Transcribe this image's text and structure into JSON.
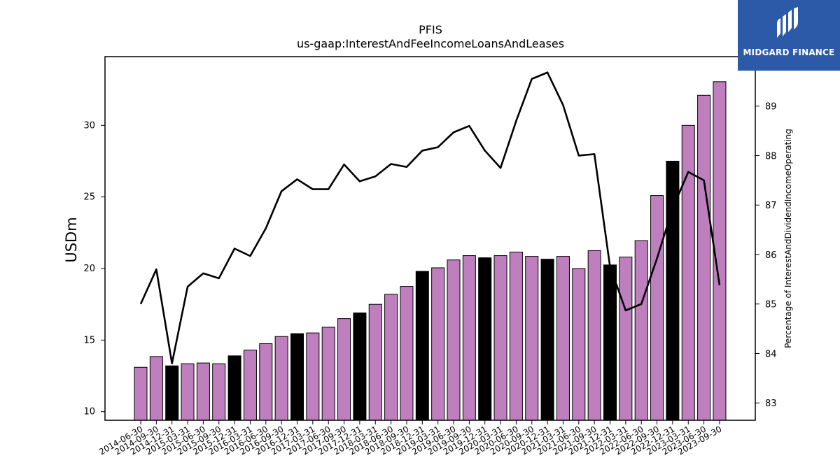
{
  "chart_data": {
    "type": "bar",
    "title": "PFIS",
    "subtitle": "us-gaap:InterestAndFeeIncomeLoansAndLeases",
    "ylabel": "USDm",
    "ylabel_right": "Percentage of InterestAndDividendIncomeOperating",
    "ylim": [
      9.4,
      34.8
    ],
    "ylim_right": [
      82.65,
      90.0
    ],
    "yticks": [
      10,
      15,
      20,
      25,
      30
    ],
    "yticks_right": [
      83,
      84,
      85,
      86,
      87,
      88,
      89
    ],
    "categories": [
      "2014-06-30",
      "2014-09-30",
      "2014-12-31",
      "2015-03-31",
      "2015-06-30",
      "2015-09-30",
      "2015-12-31",
      "2016-03-31",
      "2016-06-30",
      "2016-09-30",
      "2016-12-31",
      "2017-03-31",
      "2017-06-30",
      "2017-09-30",
      "2017-12-31",
      "2018-03-31",
      "2018-06-30",
      "2018-09-30",
      "2018-12-31",
      "2019-03-31",
      "2019-06-30",
      "2019-09-30",
      "2019-12-31",
      "2020-03-31",
      "2020-06-30",
      "2020-09-30",
      "2020-12-31",
      "2021-03-31",
      "2021-06-30",
      "2021-09-30",
      "2021-12-31",
      "2022-03-31",
      "2022-06-30",
      "2022-09-30",
      "2022-12-31",
      "2023-03-31",
      "2023-06-30",
      "2023-09-30"
    ],
    "series": [
      {
        "type": "bar",
        "values": [
          13.1,
          13.85,
          13.2,
          13.35,
          13.4,
          13.35,
          13.9,
          14.3,
          14.75,
          15.25,
          15.45,
          15.5,
          15.9,
          16.5,
          16.9,
          17.5,
          18.2,
          18.75,
          19.8,
          20.05,
          20.6,
          20.9,
          20.75,
          20.9,
          21.15,
          20.85,
          20.65,
          20.85,
          20.0,
          21.25,
          20.25,
          20.8,
          21.95,
          25.1,
          27.5,
          30.0,
          32.1,
          33.05
        ],
        "colors": [
          "#bf7fbf",
          "#bf7fbf",
          "#000000",
          "#bf7fbf",
          "#bf7fbf",
          "#bf7fbf",
          "#000000",
          "#bf7fbf",
          "#bf7fbf",
          "#bf7fbf",
          "#000000",
          "#bf7fbf",
          "#bf7fbf",
          "#bf7fbf",
          "#000000",
          "#bf7fbf",
          "#bf7fbf",
          "#bf7fbf",
          "#000000",
          "#bf7fbf",
          "#bf7fbf",
          "#bf7fbf",
          "#000000",
          "#bf7fbf",
          "#bf7fbf",
          "#bf7fbf",
          "#000000",
          "#bf7fbf",
          "#bf7fbf",
          "#bf7fbf",
          "#000000",
          "#bf7fbf",
          "#bf7fbf",
          "#bf7fbf",
          "#000000",
          "#bf7fbf",
          "#bf7fbf",
          "#bf7fbf"
        ]
      },
      {
        "type": "line",
        "axis": "right",
        "color": "#000000",
        "values": [
          85.0,
          85.7,
          83.8,
          85.35,
          85.62,
          85.52,
          86.12,
          85.97,
          86.53,
          87.28,
          87.52,
          87.32,
          87.32,
          87.82,
          87.48,
          87.58,
          87.83,
          87.77,
          88.1,
          88.17,
          88.47,
          88.6,
          88.1,
          87.75,
          88.7,
          89.55,
          89.68,
          89.02,
          88.0,
          88.03,
          85.75,
          84.87,
          85.0,
          85.92,
          86.93,
          87.67,
          87.5,
          85.38
        ]
      }
    ],
    "grid": false,
    "legend": "none"
  },
  "brand": {
    "name": "MIDGARD FINANCE",
    "color": "#2d5aa8"
  }
}
